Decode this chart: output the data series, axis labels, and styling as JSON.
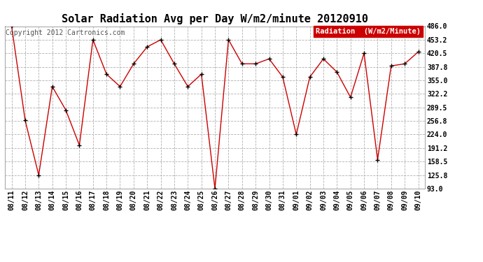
{
  "title": "Solar Radiation Avg per Day W/m2/minute 20120910",
  "copyright": "Copyright 2012 Cartronics.com",
  "legend_label": "Radiation  (W/m2/Minute)",
  "dates": [
    "08/11",
    "08/12",
    "08/13",
    "08/14",
    "08/15",
    "08/16",
    "08/17",
    "08/18",
    "08/19",
    "08/20",
    "08/21",
    "08/22",
    "08/23",
    "08/24",
    "08/25",
    "08/26",
    "08/27",
    "08/28",
    "08/29",
    "08/30",
    "08/31",
    "09/01",
    "09/02",
    "09/03",
    "09/04",
    "09/05",
    "09/06",
    "09/07",
    "09/08",
    "09/09",
    "09/10"
  ],
  "values": [
    486.0,
    258.0,
    125.8,
    340.0,
    283.0,
    198.0,
    453.2,
    370.0,
    340.0,
    395.0,
    436.0,
    453.2,
    395.0,
    340.0,
    370.0,
    93.0,
    453.2,
    395.0,
    395.0,
    407.0,
    363.0,
    224.0,
    363.0,
    407.0,
    375.0,
    314.0,
    420.5,
    163.0,
    390.0,
    395.0,
    424.0
  ],
  "ylim": [
    93.0,
    486.0
  ],
  "yticks": [
    93.0,
    125.8,
    158.5,
    191.2,
    224.0,
    256.8,
    289.5,
    322.2,
    355.0,
    387.8,
    420.5,
    453.2,
    486.0
  ],
  "line_color": "#cc0000",
  "marker_color": "#000000",
  "bg_color": "#ffffff",
  "grid_color": "#b0b0b0",
  "legend_bg": "#cc0000",
  "legend_text_color": "#ffffff",
  "title_fontsize": 11,
  "tick_fontsize": 7,
  "copyright_fontsize": 7,
  "legend_fontsize": 7.5
}
